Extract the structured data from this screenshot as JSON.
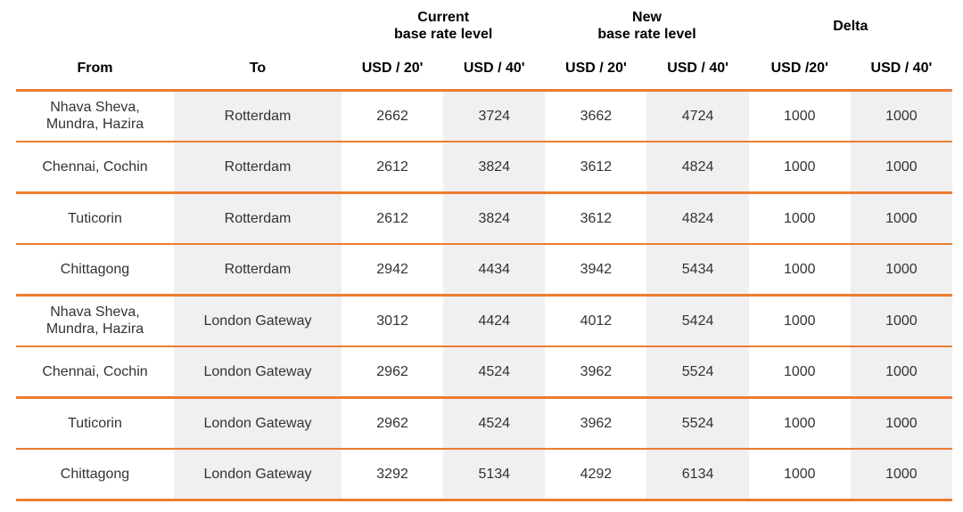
{
  "colors": {
    "accent_orange": "#ED7D31",
    "band_gray": "#F0F0F0",
    "header_text": "#000000",
    "data_text": "#333333"
  },
  "table": {
    "groups": [
      {
        "line1": "Current",
        "line2": "base rate level"
      },
      {
        "line1": "New",
        "line2": "base rate level"
      },
      {
        "line1": "Delta"
      }
    ],
    "columns": {
      "from_label": "From",
      "to_label": "To"
    },
    "subheaders": [
      "USD / 20'",
      "USD / 40'",
      "USD / 20'",
      "USD / 40'",
      "USD /20'",
      "USD / 40'"
    ],
    "rows": [
      {
        "from": "Nhava Sheva,\nMundra, Hazira",
        "to": "Rotterdam",
        "values": [
          2662,
          3724,
          3662,
          4724,
          1000,
          1000
        ]
      },
      {
        "from": "Chennai, Cochin",
        "to": "Rotterdam",
        "values": [
          2612,
          3824,
          3612,
          4824,
          1000,
          1000
        ]
      },
      {
        "from": "Tuticorin",
        "to": "Rotterdam",
        "values": [
          2612,
          3824,
          3612,
          4824,
          1000,
          1000
        ]
      },
      {
        "from": "Chittagong",
        "to": "Rotterdam",
        "values": [
          2942,
          4434,
          3942,
          5434,
          1000,
          1000
        ]
      },
      {
        "from": "Nhava Sheva,\nMundra, Hazira",
        "to": "London Gateway",
        "values": [
          3012,
          4424,
          4012,
          5424,
          1000,
          1000
        ]
      },
      {
        "from": "Chennai, Cochin",
        "to": "London Gateway",
        "values": [
          2962,
          4524,
          3962,
          5524,
          1000,
          1000
        ]
      },
      {
        "from": "Tuticorin",
        "to": "London Gateway",
        "values": [
          2962,
          4524,
          3962,
          5524,
          1000,
          1000
        ]
      },
      {
        "from": "Chittagong",
        "to": "London Gateway",
        "values": [
          3292,
          5134,
          4292,
          6134,
          1000,
          1000
        ]
      }
    ]
  },
  "chart_data": {
    "type": "table",
    "columns": [
      "From",
      "To",
      "Current base rate level USD / 20'",
      "Current base rate level USD / 40'",
      "New base rate level USD / 20'",
      "New base rate level USD / 40'",
      "Delta USD /20'",
      "Delta USD / 40'"
    ],
    "rows": [
      [
        "Nhava Sheva, Mundra, Hazira",
        "Rotterdam",
        2662,
        3724,
        3662,
        4724,
        1000,
        1000
      ],
      [
        "Chennai, Cochin",
        "Rotterdam",
        2612,
        3824,
        3612,
        4824,
        1000,
        1000
      ],
      [
        "Tuticorin",
        "Rotterdam",
        2612,
        3824,
        3612,
        4824,
        1000,
        1000
      ],
      [
        "Chittagong",
        "Rotterdam",
        2942,
        4434,
        3942,
        5434,
        1000,
        1000
      ],
      [
        "Nhava Sheva, Mundra, Hazira",
        "London Gateway",
        3012,
        4424,
        4012,
        5424,
        1000,
        1000
      ],
      [
        "Chennai, Cochin",
        "London Gateway",
        2962,
        4524,
        3962,
        5524,
        1000,
        1000
      ],
      [
        "Tuticorin",
        "London Gateway",
        2962,
        4524,
        3962,
        5524,
        1000,
        1000
      ],
      [
        "Chittagong",
        "London Gateway",
        3292,
        5134,
        4292,
        6134,
        1000,
        1000
      ]
    ]
  }
}
